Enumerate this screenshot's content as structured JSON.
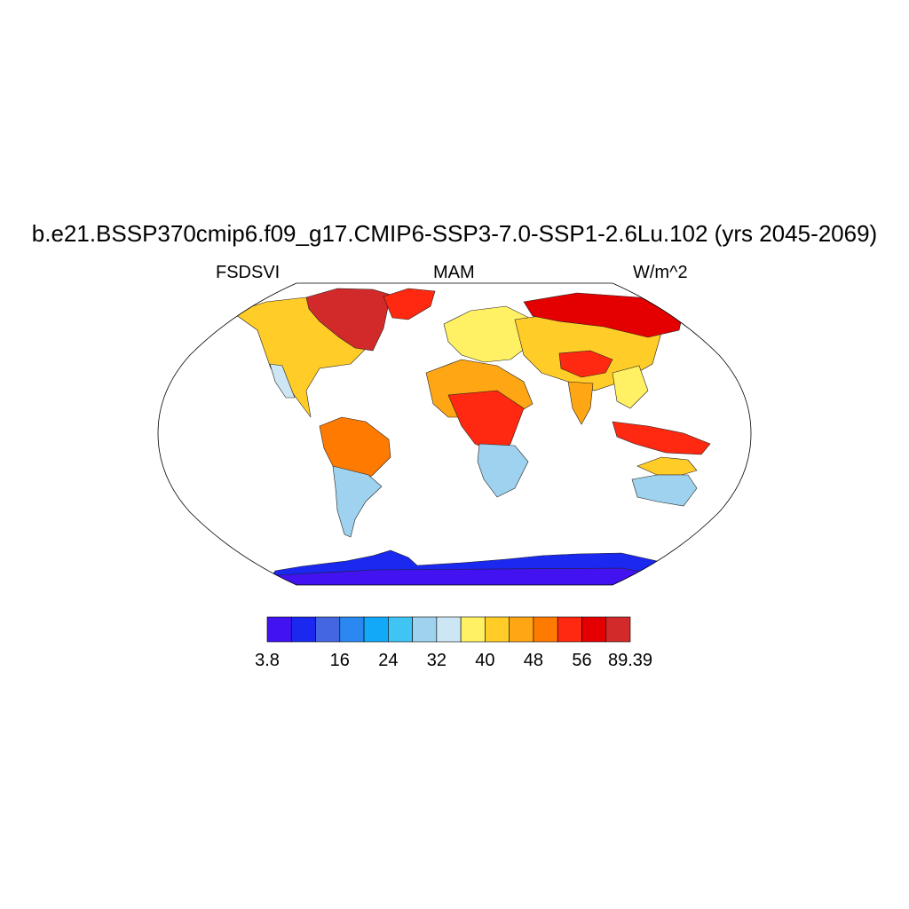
{
  "title": "b.e21.BSSP370cmip6.f09_g17.CMIP6-SSP3-7.0-SSP1-2.6Lu.102 (yrs 2045-2069)",
  "left_string": "FSDSVI",
  "center_string": "MAM",
  "right_string": "W/m^2",
  "colorbar": {
    "colors": [
      "#4212f0",
      "#1a28f0",
      "#4466e0",
      "#2a88f0",
      "#12aaf8",
      "#40c4f4",
      "#9ed2ee",
      "#cce6f4",
      "#fff064",
      "#ffcc28",
      "#ffa614",
      "#ff7a00",
      "#ff2810",
      "#e40000",
      "#d22a2a"
    ],
    "labels": [
      "3.8",
      "16",
      "24",
      "32",
      "40",
      "48",
      "56",
      "89.39"
    ]
  },
  "chart_data": {
    "type": "heatmap",
    "projection": "Robinson",
    "variable": "FSDSVI",
    "season": "MAM",
    "units": "W/m^2",
    "value_range": [
      3.8,
      89.39
    ],
    "levels": [
      8,
      12,
      16,
      20,
      24,
      28,
      32,
      36,
      40,
      44,
      48,
      52,
      56,
      60
    ],
    "regions": [
      {
        "name": "Antarctica",
        "class": 0
      },
      {
        "name": "Southern South America",
        "class": 5
      },
      {
        "name": "Southern Africa",
        "class": 6
      },
      {
        "name": "Southern Australia",
        "class": 6
      },
      {
        "name": "Western North America coast",
        "class": 7
      },
      {
        "name": "North America",
        "class": 9
      },
      {
        "name": "Europe",
        "class": 8
      },
      {
        "name": "Central Asia",
        "class": 9
      },
      {
        "name": "South America interior",
        "class": 10
      },
      {
        "name": "Central Africa",
        "class": 12
      },
      {
        "name": "Tibetan Plateau",
        "class": 12
      },
      {
        "name": "Maritime Continent",
        "class": 12
      },
      {
        "name": "Greenland",
        "class": 13
      },
      {
        "name": "Canadian Arctic",
        "class": 14
      },
      {
        "name": "Siberia",
        "class": 14
      }
    ]
  }
}
